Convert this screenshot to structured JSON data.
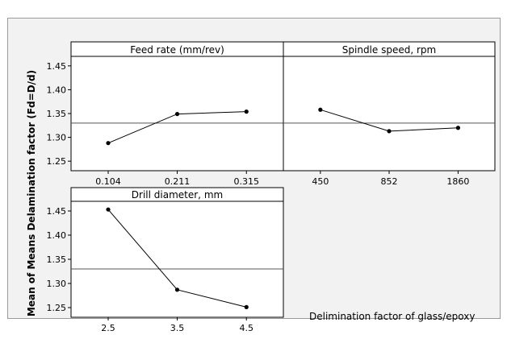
{
  "colors": {
    "background": "#f2f2f2",
    "plot": "#ffffff",
    "line": "#000000",
    "mean_line": "#555555"
  },
  "figure": {
    "ylabel": "Mean of Means Delamination factor (Fd=D/d)",
    "footer_note": "Delimination factor of glass/epoxy"
  },
  "chart_data": [
    {
      "type": "line",
      "title": "Feed rate (mm/rev)",
      "categories": [
        "0.104",
        "0.211",
        "0.315"
      ],
      "values": [
        1.288,
        1.349,
        1.354
      ],
      "ylim": [
        1.23,
        1.47
      ],
      "yticks": [
        "1.25",
        "1.30",
        "1.35",
        "1.40",
        "1.45"
      ],
      "reference_line": 1.33
    },
    {
      "type": "line",
      "title": "Spindle speed, rpm",
      "categories": [
        "450",
        "852",
        "1860"
      ],
      "values": [
        1.358,
        1.313,
        1.32
      ],
      "ylim": [
        1.23,
        1.47
      ],
      "reference_line": 1.33
    },
    {
      "type": "line",
      "title": "Drill diameter, mm",
      "categories": [
        "2.5",
        "3.5",
        "4.5"
      ],
      "values": [
        1.453,
        1.287,
        1.251
      ],
      "ylim": [
        1.23,
        1.47
      ],
      "yticks": [
        "1.25",
        "1.30",
        "1.35",
        "1.40",
        "1.45"
      ],
      "reference_line": 1.33
    }
  ]
}
